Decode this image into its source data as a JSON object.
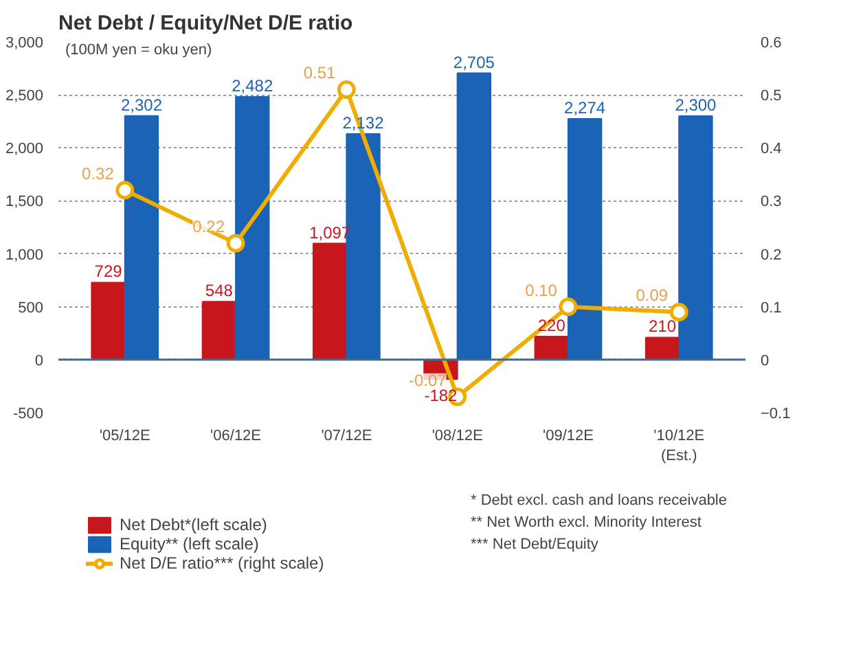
{
  "chart_data": {
    "type": "bar",
    "title": "Net Debt / Equity/Net D/E ratio",
    "categories": [
      "'05/12E",
      "'06/12E",
      "'07/12E",
      "'08/12E",
      "'09/12E",
      "'10/12E\n(Est.)"
    ],
    "series": [
      {
        "name": "Net Debt*(left scale)",
        "color": "#c8161d",
        "values": [
          729,
          548,
          1097,
          -182,
          220,
          210
        ],
        "value_labels": [
          "729",
          "548",
          "1,097",
          "-182",
          "220",
          "210"
        ]
      },
      {
        "name": "Equity** (left scale)",
        "color": "#1a63b5",
        "values": [
          2302,
          2482,
          2132,
          2705,
          2274,
          2300
        ],
        "value_labels": [
          "2,302",
          "2,482",
          "2,132",
          "2,705",
          "2,274",
          "2,300"
        ]
      },
      {
        "name": "Net D/E ratio*** (right scale)",
        "type": "line",
        "axis": "y2",
        "marker": "circle",
        "color": "#f0ac00",
        "values": [
          0.32,
          0.22,
          0.51,
          -0.07,
          0.1,
          0.09
        ],
        "value_labels": [
          "0.32",
          "0.22",
          "0.51",
          "-0.07",
          "0.10",
          "0.09"
        ]
      }
    ],
    "ylim": [
      -500,
      3000
    ],
    "yticks": [
      {
        "value": -500,
        "label": "-500"
      },
      0,
      500,
      {
        "value": 1000,
        "label": "1,000"
      },
      {
        "value": 1500,
        "label": "1,500"
      },
      {
        "value": 2000,
        "label": "2,000"
      },
      {
        "value": 2500,
        "label": "2,500"
      },
      {
        "value": 3000,
        "label": "3,000"
      }
    ],
    "y2lim": [
      -0.1,
      0.6
    ],
    "y2ticks": [
      -0.1,
      0,
      0.1,
      0.2,
      0.3,
      0.4,
      0.5,
      0.6
    ],
    "ref_lines": [
      {
        "axis": "y",
        "value": 0,
        "color": "#4a6a8a"
      }
    ],
    "grid": "y",
    "legend": "bottom",
    "annotations": [
      "(100M yen = oku yen)",
      "*   Debt excl. cash and loans receivable",
      "**  Net Worth excl. Minority Interest",
      "*** Net Debt/Equity"
    ]
  }
}
